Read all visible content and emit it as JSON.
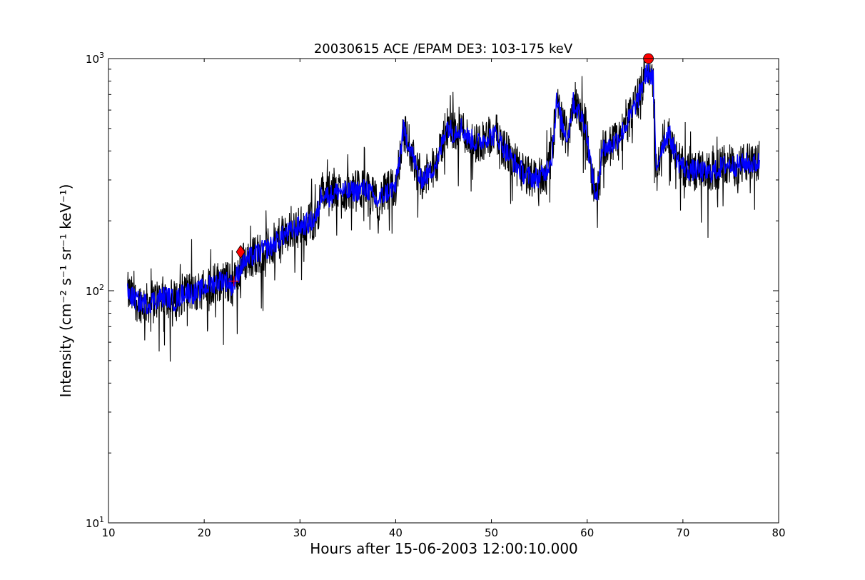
{
  "chart_data": {
    "type": "line",
    "title": "20030615 ACE /EPAM DE3: 103-175 keV",
    "xlabel": "Hours after 15-06-2003 12:00:10.000",
    "ylabel": "Intensity (cm⁻² s⁻¹ sr⁻¹ keV⁻¹)",
    "xlim": [
      10,
      80
    ],
    "ylim": [
      10,
      1000
    ],
    "yscale": "log",
    "grid": false,
    "x_ticks": [
      10,
      20,
      30,
      40,
      50,
      60,
      70,
      80
    ],
    "x_tick_labels": [
      "10",
      "20",
      "30",
      "40",
      "50",
      "60",
      "70",
      "80"
    ],
    "y_ticks": [
      10,
      100,
      1000
    ],
    "y_tick_labels": [
      {
        "base": "10",
        "exp": "1"
      },
      {
        "base": "10",
        "exp": "2"
      },
      {
        "base": "10",
        "exp": "3"
      }
    ],
    "series": [
      {
        "color": "#000000",
        "style": "raw",
        "x": [
          12,
          13,
          14,
          15,
          16,
          17,
          18,
          19,
          20,
          21,
          22,
          23,
          24,
          25,
          26,
          27,
          28,
          29,
          30,
          31,
          31.8,
          32.3,
          33,
          34,
          35,
          36,
          37,
          38,
          39,
          40,
          40.8,
          41.5,
          42.5,
          43.5,
          44.5,
          45.3,
          46,
          46.8,
          47.5,
          48.5,
          49.5,
          50.5,
          51.5,
          52.5,
          53.5,
          54.5,
          55.5,
          56.3,
          56.8,
          57.5,
          58,
          58.5,
          59.2,
          59.8,
          60.5,
          61,
          61.5,
          62.5,
          63.5,
          64.5,
          65.5,
          66,
          66.5,
          66.9,
          67.2,
          67.8,
          68.5,
          69.5,
          70.5,
          71.5,
          72.5,
          73.5,
          74.5,
          75.5,
          76.5,
          77.5,
          78
        ],
        "values": [
          98,
          90,
          88,
          92,
          95,
          90,
          100,
          97,
          103,
          108,
          112,
          105,
          132,
          140,
          148,
          155,
          170,
          180,
          190,
          195,
          210,
          270,
          255,
          270,
          265,
          270,
          275,
          240,
          265,
          280,
          490,
          420,
          300,
          320,
          370,
          520,
          480,
          510,
          460,
          430,
          460,
          470,
          400,
          350,
          315,
          305,
          315,
          380,
          650,
          500,
          460,
          650,
          580,
          520,
          320,
          240,
          410,
          420,
          470,
          560,
          700,
          840,
          880,
          800,
          330,
          420,
          480,
          360,
          330,
          330,
          320,
          330,
          350,
          345,
          355,
          350,
          360
        ]
      },
      {
        "color": "#0000ff",
        "style": "smoothed",
        "x": [
          12,
          13,
          14,
          15,
          16,
          17,
          18,
          19,
          20,
          21,
          22,
          23,
          24,
          25,
          26,
          27,
          28,
          29,
          30,
          31,
          31.8,
          32.3,
          33,
          34,
          35,
          36,
          37,
          38,
          39,
          40,
          40.8,
          41.5,
          42.5,
          43.5,
          44.5,
          45.3,
          46,
          46.8,
          47.5,
          48.5,
          49.5,
          50.5,
          51.5,
          52.5,
          53.5,
          54.5,
          55.5,
          56.3,
          56.8,
          57.5,
          58,
          58.5,
          59.2,
          59.8,
          60.5,
          61,
          61.5,
          62.5,
          63.5,
          64.5,
          65.5,
          66,
          66.5,
          66.9,
          67.2,
          67.8,
          68.5,
          69.5,
          70.5,
          71.5,
          72.5,
          73.5,
          74.5,
          75.5,
          76.5,
          77.5,
          78
        ],
        "values": [
          98,
          90,
          88,
          92,
          95,
          90,
          100,
          97,
          103,
          108,
          112,
          105,
          132,
          140,
          148,
          155,
          170,
          180,
          190,
          195,
          210,
          270,
          255,
          270,
          265,
          270,
          275,
          240,
          265,
          280,
          490,
          420,
          300,
          320,
          370,
          520,
          480,
          510,
          460,
          430,
          460,
          470,
          400,
          350,
          315,
          305,
          315,
          380,
          650,
          500,
          460,
          650,
          580,
          520,
          320,
          240,
          410,
          420,
          470,
          560,
          700,
          840,
          880,
          800,
          330,
          420,
          480,
          360,
          330,
          330,
          320,
          330,
          350,
          345,
          355,
          350,
          360
        ]
      }
    ],
    "markers": [
      {
        "shape": "plus",
        "x": 23.1,
        "y": 110,
        "color": "#ff0000"
      },
      {
        "shape": "diamond",
        "x": 23.8,
        "y": 147,
        "color": "#ff0000"
      },
      {
        "shape": "circle",
        "x": 66.4,
        "y": 1000,
        "color": "#ff0000"
      }
    ]
  }
}
